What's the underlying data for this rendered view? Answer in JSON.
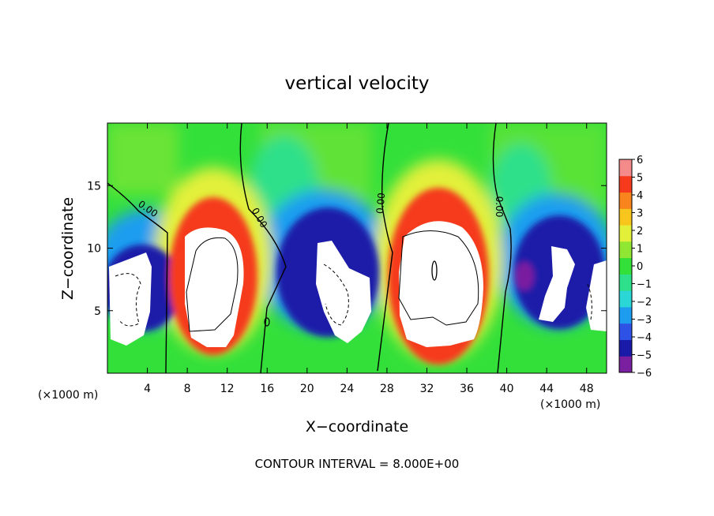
{
  "chart_data": {
    "type": "heatmap",
    "title": "vertical velocity",
    "xlabel": "X−coordinate",
    "ylabel": "Z−coordinate",
    "x_unit_label": "(×1000 m)",
    "footer": "CONTOUR INTERVAL = 8.000E+00",
    "xlim": [
      0,
      50
    ],
    "ylim": [
      0,
      20
    ],
    "x_ticks": [
      4,
      8,
      12,
      16,
      20,
      24,
      28,
      32,
      36,
      40,
      44,
      48
    ],
    "y_ticks": [
      5,
      10,
      15
    ],
    "colorbar": {
      "ticks": [
        "6",
        "5",
        "4",
        "3",
        "2",
        "1",
        "0",
        "−1",
        "−2",
        "−3",
        "−4",
        "−5",
        "−6"
      ],
      "range": [
        -6,
        6
      ],
      "colors": [
        "#7a1fa0",
        "#1a1aa8",
        "#2f52e6",
        "#1e9df0",
        "#2ad6d6",
        "#2fe08a",
        "#33e03a",
        "#8fe633",
        "#e3f03a",
        "#f7c51c",
        "#f7841c",
        "#f53a1e",
        "#f58a8a"
      ]
    },
    "contour_labels": [
      "0.00",
      "0.00",
      "0.00",
      "0.00"
    ],
    "cells": [
      {
        "x": 4,
        "z": 7,
        "sign": -1
      },
      {
        "x": 10,
        "z": 7,
        "sign": 1
      },
      {
        "x": 22,
        "z": 6.5,
        "sign": -1
      },
      {
        "x": 33,
        "z": 7.5,
        "sign": 1
      },
      {
        "x": 45,
        "z": 7,
        "sign": -1
      }
    ]
  }
}
